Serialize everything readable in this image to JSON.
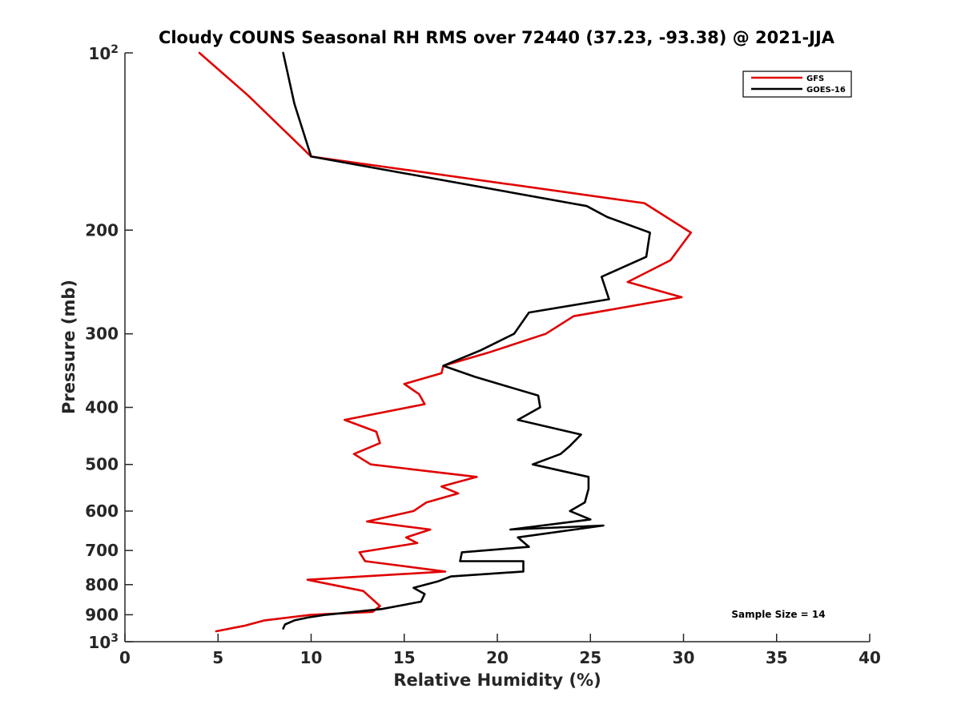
{
  "chart_data": {
    "type": "line",
    "title": "Cloudy COUNS Seasonal RH RMS over 72440 (37.23, -93.38) @ 2021-JJA",
    "xlabel": "Relative Humidity (%)",
    "ylabel": "Pressure (mb)",
    "xlim": [
      0,
      40
    ],
    "ylim": [
      100,
      1000
    ],
    "yscale": "log",
    "yreverse": true,
    "x_ticks": [
      "0",
      "5",
      "10",
      "15",
      "20",
      "25",
      "30",
      "35",
      "40"
    ],
    "y_ticks": [
      {
        "value": 100,
        "base": "10",
        "exp": "2"
      },
      {
        "value": 200,
        "label": "200"
      },
      {
        "value": 300,
        "label": "300"
      },
      {
        "value": 400,
        "label": "400"
      },
      {
        "value": 500,
        "label": "500"
      },
      {
        "value": 600,
        "label": "600"
      },
      {
        "value": 700,
        "label": "700"
      },
      {
        "value": 800,
        "label": "800"
      },
      {
        "value": 900,
        "label": "900"
      },
      {
        "value": 1000,
        "base": "10",
        "exp": "3"
      }
    ],
    "legend_position": "top-right",
    "annotation": "Sample Size = 14",
    "series": [
      {
        "name": "GFS",
        "color": "#e00000",
        "x": [
          4.0,
          6.6,
          10.0,
          27.9,
          30.4,
          29.3,
          27.0,
          29.9,
          24.1,
          22.6,
          19.5,
          17.1,
          17.0,
          15.0,
          15.8,
          16.1,
          11.8,
          13.5,
          13.7,
          12.3,
          13.2,
          18.9,
          17.0,
          17.9,
          16.2,
          15.5,
          13.0,
          16.4,
          15.1,
          15.7,
          12.6,
          12.9,
          17.2,
          9.8,
          12.8,
          13.7,
          13.3,
          10.0,
          7.5,
          6.4,
          4.9
        ],
        "y": [
          100,
          118,
          150,
          180,
          202,
          225,
          245,
          260,
          280,
          300,
          323,
          340,
          350,
          365,
          380,
          395,
          420,
          440,
          460,
          480,
          500,
          525,
          545,
          560,
          580,
          600,
          625,
          645,
          665,
          680,
          705,
          730,
          760,
          785,
          820,
          870,
          890,
          900,
          920,
          940,
          960
        ]
      },
      {
        "name": "GOES-16",
        "color": "#000000",
        "x": [
          8.5,
          9.1,
          10.0,
          24.8,
          25.9,
          28.2,
          28.0,
          25.6,
          26.0,
          21.7,
          20.9,
          19.1,
          17.1,
          18.8,
          22.2,
          22.3,
          21.1,
          24.5,
          23.9,
          23.4,
          21.9,
          24.9,
          24.9,
          24.7,
          23.9,
          25.0,
          20.7,
          25.7,
          21.1,
          21.7,
          18.1,
          18.0,
          21.4,
          21.4,
          17.5,
          16.8,
          15.5,
          16.1,
          15.9,
          13.8,
          10.8,
          9.8,
          9.1,
          8.6,
          8.5
        ],
        "y": [
          100,
          122,
          150,
          182,
          190,
          202,
          222,
          240,
          262,
          276,
          300,
          320,
          340,
          355,
          382,
          400,
          420,
          445,
          465,
          480,
          500,
          525,
          550,
          580,
          600,
          620,
          645,
          635,
          665,
          690,
          705,
          730,
          730,
          760,
          775,
          790,
          810,
          830,
          855,
          880,
          900,
          910,
          920,
          935,
          950
        ]
      }
    ]
  }
}
